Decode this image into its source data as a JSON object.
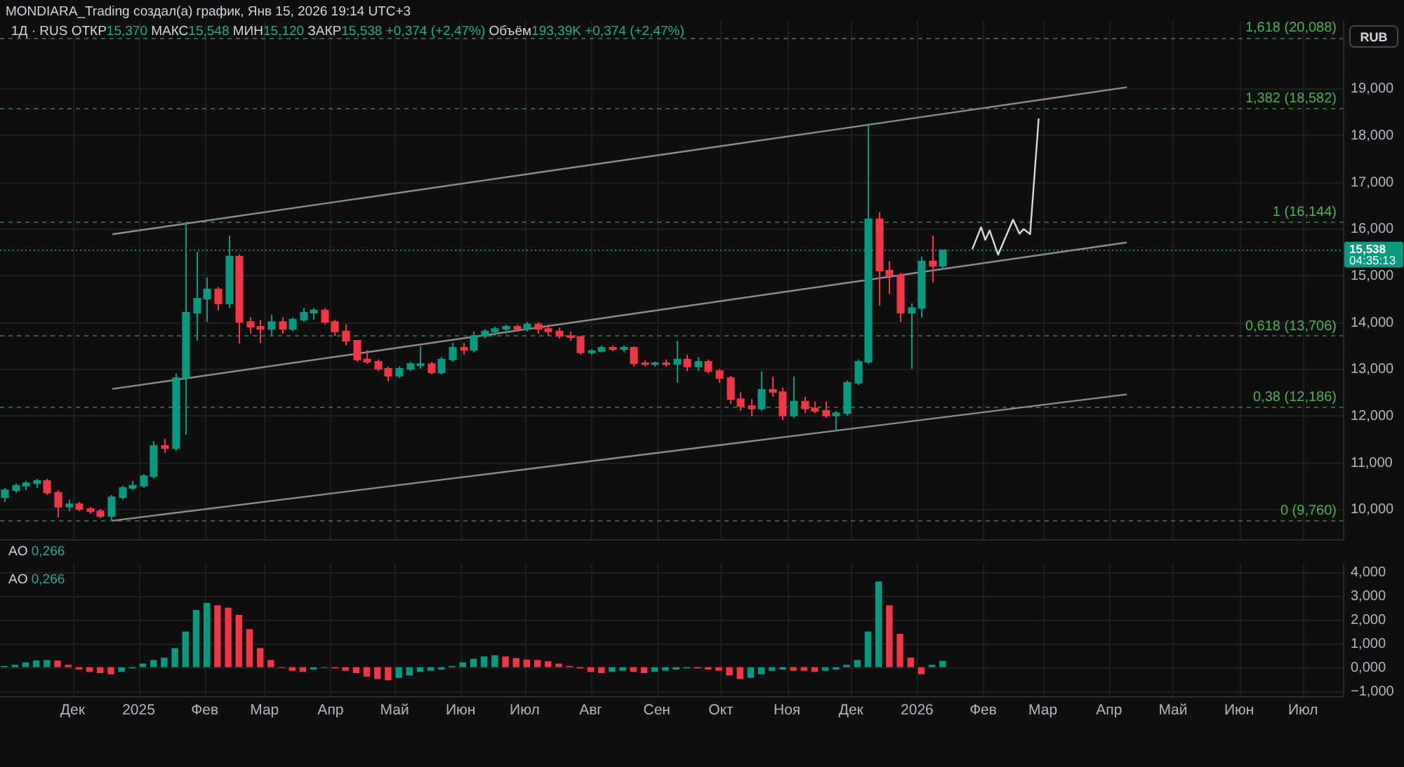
{
  "chart_data": [
    {
      "type": "candlestick",
      "title": "MONDIARA_Trading создал(а) график, Янв 15, 2026 19:14 UTC+3",
      "subtitle": "1Д · RUS ОТКР15,370 МАКС15,548 МИН15,120 ЗАКР15,538 +0,374 (+2,47%) Объём193,39K +0,374 (+2,47%)",
      "ylabel": "RUB",
      "x": [
        "2024-10-30",
        "2024-11-04",
        "2024-11-09",
        "2024-11-14",
        "2024-11-19",
        "2024-11-24",
        "2024-11-29",
        "2024-12-04",
        "2024-12-09",
        "2024-12-14",
        "2024-12-19",
        "2024-12-24",
        "2024-12-29",
        "2025-01-03",
        "2025-01-08",
        "2025-01-13",
        "2025-01-18",
        "2025-01-23",
        "2025-01-28",
        "2025-02-02",
        "2025-02-07",
        "2025-02-12",
        "2025-02-17",
        "2025-02-22",
        "2025-02-27",
        "2025-03-04",
        "2025-03-09",
        "2025-03-14",
        "2025-03-19",
        "2025-03-24",
        "2025-03-29",
        "2025-04-03",
        "2025-04-08",
        "2025-04-13",
        "2025-04-18",
        "2025-04-23",
        "2025-04-28",
        "2025-05-03",
        "2025-05-08",
        "2025-05-13",
        "2025-05-18",
        "2025-05-23",
        "2025-05-28",
        "2025-06-02",
        "2025-06-07",
        "2025-06-12",
        "2025-06-17",
        "2025-06-22",
        "2025-06-27",
        "2025-07-02",
        "2025-07-07",
        "2025-07-12",
        "2025-07-17",
        "2025-07-22",
        "2025-07-27",
        "2025-08-01",
        "2025-08-06",
        "2025-08-11",
        "2025-08-16",
        "2025-08-21",
        "2025-08-26",
        "2025-08-31",
        "2025-09-05",
        "2025-09-10",
        "2025-09-15",
        "2025-09-20",
        "2025-09-25",
        "2025-09-30",
        "2025-10-05",
        "2025-10-10",
        "2025-10-15",
        "2025-10-20",
        "2025-10-25",
        "2025-10-30",
        "2025-11-04",
        "2025-11-09",
        "2025-11-14",
        "2025-11-19",
        "2025-11-24",
        "2025-11-29",
        "2025-12-04",
        "2025-12-09",
        "2025-12-14",
        "2025-12-19",
        "2025-12-24",
        "2025-12-29",
        "2026-01-03",
        "2026-01-08",
        "2026-01-13"
      ],
      "ohlc": [
        [
          10.25,
          10.45,
          10.15,
          10.4
        ],
        [
          10.4,
          10.55,
          10.35,
          10.5
        ],
        [
          10.5,
          10.6,
          10.4,
          10.55
        ],
        [
          10.55,
          10.65,
          10.45,
          10.6
        ],
        [
          10.6,
          10.65,
          10.3,
          10.35
        ],
        [
          10.35,
          10.4,
          9.82,
          10.05
        ],
        [
          10.05,
          10.2,
          9.95,
          10.1
        ],
        [
          10.1,
          10.15,
          9.95,
          10.0
        ],
        [
          10.0,
          10.05,
          9.9,
          9.95
        ],
        [
          9.95,
          10.0,
          9.8,
          9.85
        ],
        [
          9.85,
          10.3,
          9.76,
          10.25
        ],
        [
          10.25,
          10.5,
          10.2,
          10.45
        ],
        [
          10.45,
          10.6,
          10.4,
          10.5
        ],
        [
          10.5,
          10.75,
          10.45,
          10.7
        ],
        [
          10.7,
          11.45,
          10.65,
          11.35
        ],
        [
          11.35,
          11.5,
          11.2,
          11.3
        ],
        [
          11.3,
          12.9,
          11.25,
          12.8
        ],
        [
          12.8,
          16.14,
          11.59,
          14.2
        ],
        [
          14.2,
          15.5,
          13.6,
          14.5
        ],
        [
          14.5,
          14.95,
          14.0,
          14.7
        ],
        [
          14.7,
          14.75,
          14.25,
          14.4
        ],
        [
          14.4,
          15.85,
          14.3,
          15.4
        ],
        [
          15.4,
          15.45,
          13.54,
          14.0
        ],
        [
          14.0,
          14.1,
          13.75,
          13.9
        ],
        [
          13.9,
          14.05,
          13.55,
          13.85
        ],
        [
          13.85,
          14.15,
          13.7,
          14.0
        ],
        [
          14.0,
          14.1,
          13.75,
          13.85
        ],
        [
          13.85,
          14.1,
          13.8,
          14.05
        ],
        [
          14.05,
          14.3,
          14.0,
          14.2
        ],
        [
          14.2,
          14.3,
          14.05,
          14.25
        ],
        [
          14.25,
          14.3,
          13.95,
          14.0
        ],
        [
          14.0,
          14.05,
          13.7,
          13.8
        ],
        [
          13.8,
          13.95,
          13.5,
          13.6
        ],
        [
          13.6,
          13.6,
          13.15,
          13.2
        ],
        [
          13.2,
          13.4,
          13.1,
          13.15
        ],
        [
          13.15,
          13.2,
          12.95,
          13.0
        ],
        [
          13.0,
          13.05,
          12.73,
          12.85
        ],
        [
          12.85,
          13.05,
          12.8,
          13.0
        ],
        [
          13.0,
          13.15,
          12.95,
          13.1
        ],
        [
          13.1,
          13.48,
          13.0,
          13.1
        ],
        [
          13.1,
          13.15,
          12.88,
          12.92
        ],
        [
          12.92,
          13.25,
          12.88,
          13.2
        ],
        [
          13.2,
          13.55,
          13.15,
          13.45
        ],
        [
          13.45,
          13.55,
          13.3,
          13.4
        ],
        [
          13.4,
          13.8,
          13.35,
          13.7
        ],
        [
          13.7,
          13.85,
          13.65,
          13.8
        ],
        [
          13.8,
          13.9,
          13.7,
          13.85
        ],
        [
          13.85,
          13.95,
          13.75,
          13.9
        ],
        [
          13.9,
          13.95,
          13.8,
          13.85
        ],
        [
          13.85,
          14.0,
          13.8,
          13.95
        ],
        [
          13.95,
          14.0,
          13.75,
          13.85
        ],
        [
          13.85,
          13.95,
          13.7,
          13.8
        ],
        [
          13.8,
          13.88,
          13.65,
          13.7
        ],
        [
          13.7,
          13.8,
          13.6,
          13.68
        ],
        [
          13.68,
          13.7,
          13.3,
          13.35
        ],
        [
          13.35,
          13.42,
          13.3,
          13.38
        ],
        [
          13.38,
          13.5,
          13.35,
          13.45
        ],
        [
          13.45,
          13.5,
          13.38,
          13.42
        ],
        [
          13.42,
          13.5,
          13.35,
          13.45
        ],
        [
          13.45,
          13.48,
          13.05,
          13.12
        ],
        [
          13.12,
          13.18,
          13.05,
          13.1
        ],
        [
          13.1,
          13.15,
          13.05,
          13.12
        ],
        [
          13.12,
          13.2,
          13.05,
          13.1
        ],
        [
          13.1,
          13.6,
          12.7,
          13.2
        ],
        [
          13.2,
          13.3,
          12.95,
          13.05
        ],
        [
          13.05,
          13.25,
          12.95,
          13.15
        ],
        [
          13.15,
          13.2,
          12.9,
          12.95
        ],
        [
          12.95,
          13.0,
          12.7,
          12.8
        ],
        [
          12.8,
          12.85,
          12.25,
          12.35
        ],
        [
          12.35,
          12.5,
          12.1,
          12.2
        ],
        [
          12.2,
          12.35,
          11.98,
          12.15
        ],
        [
          12.15,
          12.94,
          12.1,
          12.55
        ],
        [
          12.55,
          12.83,
          12.4,
          12.5
        ],
        [
          12.5,
          12.6,
          11.9,
          12.0
        ],
        [
          12.0,
          12.83,
          11.95,
          12.3
        ],
        [
          12.3,
          12.4,
          12.05,
          12.15
        ],
        [
          12.15,
          12.3,
          12.05,
          12.1
        ],
        [
          12.1,
          12.3,
          11.95,
          12.0
        ],
        [
          12.0,
          12.1,
          11.68,
          12.05
        ],
        [
          12.05,
          12.75,
          12.0,
          12.7
        ],
        [
          12.7,
          13.2,
          12.65,
          13.15
        ],
        [
          13.15,
          18.25,
          13.1,
          16.2
        ],
        [
          16.2,
          16.35,
          14.35,
          15.1
        ],
        [
          15.1,
          15.3,
          14.6,
          15.0
        ],
        [
          15.0,
          15.05,
          14.0,
          14.2
        ],
        [
          14.2,
          14.4,
          13.0,
          14.3
        ],
        [
          14.3,
          15.4,
          14.1,
          15.3
        ],
        [
          15.3,
          15.85,
          14.85,
          15.2
        ],
        [
          15.2,
          15.548,
          15.12,
          15.538
        ]
      ],
      "colors": [
        "#089981",
        "#089981",
        "#089981",
        "#089981",
        "#f23645",
        "#f23645",
        "#089981",
        "#f23645",
        "#f23645",
        "#f23645",
        "#089981",
        "#089981",
        "#089981",
        "#089981",
        "#089981",
        "#f23645",
        "#089981",
        "#089981",
        "#089981",
        "#089981",
        "#f23645",
        "#089981",
        "#f23645",
        "#f23645",
        "#f23645",
        "#089981",
        "#f23645",
        "#089981",
        "#089981",
        "#089981",
        "#f23645",
        "#f23645",
        "#f23645",
        "#f23645",
        "#f23645",
        "#f23645",
        "#f23645",
        "#089981",
        "#089981",
        "#089981",
        "#f23645",
        "#089981",
        "#089981",
        "#f23645",
        "#089981",
        "#089981",
        "#089981",
        "#089981",
        "#f23645",
        "#089981",
        "#f23645",
        "#f23645",
        "#f23645",
        "#f23645",
        "#f23645",
        "#089981",
        "#089981",
        "#f23645",
        "#089981",
        "#f23645",
        "#f23645",
        "#089981",
        "#f23645",
        "#089981",
        "#f23645",
        "#089981",
        "#f23645",
        "#f23645",
        "#f23645",
        "#f23645",
        "#f23645",
        "#089981",
        "#f23645",
        "#f23645",
        "#089981",
        "#f23645",
        "#f23645",
        "#f23645",
        "#089981",
        "#089981",
        "#089981",
        "#089981",
        "#f23645",
        "#f23645",
        "#f23645",
        "#089981",
        "#089981",
        "#f23645",
        "#089981"
      ],
      "series": [
        {
          "type": "line",
          "x": [
            "2024-12-20",
            "2026-04-09"
          ],
          "values": [
            15.88,
            19.02
          ],
          "color": "#8c8c8c"
        },
        {
          "type": "line",
          "x": [
            "2024-12-20",
            "2026-04-09"
          ],
          "values": [
            12.57,
            15.7
          ],
          "color": "#8c8c8c"
        },
        {
          "type": "line",
          "x": [
            "2024-12-20",
            "2026-04-09"
          ],
          "values": [
            9.75,
            12.45
          ],
          "color": "#8c8c8c"
        },
        {
          "type": "line",
          "x": [
            "2026-01-27",
            "2026-01-31",
            "2026-02-02",
            "2026-02-04",
            "2026-02-08",
            "2026-02-15",
            "2026-02-18",
            "2026-02-20",
            "2026-02-23",
            "2026-02-27"
          ],
          "values": [
            15.57,
            16.03,
            15.76,
            15.96,
            15.44,
            16.19,
            15.89,
            15.99,
            15.88,
            18.34
          ],
          "color": "#d9d9d9"
        }
      ],
      "ref_lines": [
        {
          "axis": "y",
          "value": 9.76,
          "label": "0 (9,760)",
          "color": "#4caf50",
          "line_style": "dashed"
        },
        {
          "axis": "y",
          "value": 12.186,
          "label": "0,38 (12,186)",
          "color": "#4caf50",
          "line_style": "dashed"
        },
        {
          "axis": "y",
          "value": 13.706,
          "label": "0,618 (13,706)",
          "color": "#4caf50",
          "line_style": "dashed"
        },
        {
          "axis": "y",
          "value": 16.144,
          "label": "1 (16,144)",
          "color": "#4caf50",
          "line_style": "dashed"
        },
        {
          "axis": "y",
          "value": 18.582,
          "label": "1,382 (18,582)",
          "color": "#4caf50",
          "line_style": "dashed"
        },
        {
          "axis": "y",
          "value": 20.088,
          "label": "1,618 (20,088)",
          "color": "#4caf50",
          "line_style": "dashed"
        },
        {
          "axis": "y",
          "value": 15.538,
          "label": "15,538\n04:35:13",
          "color": "#089981",
          "line_style": "dotted"
        }
      ],
      "xlim": [
        "2024-10-28",
        "2026-07-20"
      ],
      "xticks": [
        "2024-12-01",
        "2025-01-01",
        "2025-02-01",
        "2025-03-01",
        "2025-04-01",
        "2025-05-01",
        "2025-06-01",
        "2025-07-01",
        "2025-08-01",
        "2025-09-01",
        "2025-10-01",
        "2025-11-01",
        "2025-12-01",
        "2026-01-01",
        "2026-02-01",
        "2026-03-01",
        "2026-04-01",
        "2026-05-01",
        "2026-06-01",
        "2026-07-01"
      ],
      "ylim": [
        9.34,
        20.44
      ],
      "yticks": [
        {
          "value": 10,
          "label": "10,000"
        },
        {
          "value": 11,
          "label": "11,000"
        },
        {
          "value": 12,
          "label": "12,000"
        },
        {
          "value": 13,
          "label": "13,000"
        },
        {
          "value": 14,
          "label": "14,000"
        },
        {
          "value": 15,
          "label": "15,000"
        },
        {
          "value": 16,
          "label": "16,000"
        },
        {
          "value": 17,
          "label": "17,000"
        },
        {
          "value": 18,
          "label": "18,000"
        },
        {
          "value": 19,
          "label": "19,000"
        }
      ],
      "grid": true,
      "tick_labels": "y"
    },
    {
      "type": "bar",
      "annotations": [
        "AO 0,266",
        "AO 0,266"
      ],
      "x": [
        "2024-10-30",
        "2024-11-04",
        "2024-11-09",
        "2024-11-14",
        "2024-11-19",
        "2024-11-24",
        "2024-11-29",
        "2024-12-04",
        "2024-12-09",
        "2024-12-14",
        "2024-12-19",
        "2024-12-24",
        "2024-12-29",
        "2025-01-03",
        "2025-01-08",
        "2025-01-13",
        "2025-01-18",
        "2025-01-23",
        "2025-01-28",
        "2025-02-02",
        "2025-02-07",
        "2025-02-12",
        "2025-02-17",
        "2025-02-22",
        "2025-02-27",
        "2025-03-04",
        "2025-03-09",
        "2025-03-14",
        "2025-03-19",
        "2025-03-24",
        "2025-03-29",
        "2025-04-03",
        "2025-04-08",
        "2025-04-13",
        "2025-04-18",
        "2025-04-23",
        "2025-04-28",
        "2025-05-03",
        "2025-05-08",
        "2025-05-13",
        "2025-05-18",
        "2025-05-23",
        "2025-05-28",
        "2025-06-02",
        "2025-06-07",
        "2025-06-12",
        "2025-06-17",
        "2025-06-22",
        "2025-06-27",
        "2025-07-02",
        "2025-07-07",
        "2025-07-12",
        "2025-07-17",
        "2025-07-22",
        "2025-07-27",
        "2025-08-01",
        "2025-08-06",
        "2025-08-11",
        "2025-08-16",
        "2025-08-21",
        "2025-08-26",
        "2025-08-31",
        "2025-09-05",
        "2025-09-10",
        "2025-09-15",
        "2025-09-20",
        "2025-09-25",
        "2025-09-30",
        "2025-10-05",
        "2025-10-10",
        "2025-10-15",
        "2025-10-20",
        "2025-10-25",
        "2025-10-30",
        "2025-11-04",
        "2025-11-09",
        "2025-11-14",
        "2025-11-19",
        "2025-11-24",
        "2025-11-29",
        "2025-12-04",
        "2025-12-09",
        "2025-12-14",
        "2025-12-19",
        "2025-12-24",
        "2025-12-29",
        "2026-01-03",
        "2026-01-08",
        "2026-01-13"
      ],
      "values": [
        0.05,
        0.1,
        0.2,
        0.28,
        0.3,
        0.28,
        0.1,
        -0.1,
        -0.2,
        -0.25,
        -0.3,
        -0.2,
        -0.05,
        0.15,
        0.3,
        0.4,
        0.8,
        1.5,
        2.4,
        2.7,
        2.6,
        2.5,
        2.2,
        1.6,
        0.8,
        0.3,
        0.0,
        -0.15,
        -0.2,
        -0.1,
        0.0,
        -0.05,
        -0.15,
        -0.25,
        -0.4,
        -0.5,
        -0.55,
        -0.45,
        -0.35,
        -0.2,
        -0.15,
        -0.1,
        0.05,
        0.2,
        0.35,
        0.45,
        0.5,
        0.45,
        0.38,
        0.32,
        0.3,
        0.25,
        0.15,
        0.05,
        -0.05,
        -0.2,
        -0.25,
        -0.2,
        -0.15,
        -0.2,
        -0.25,
        -0.2,
        -0.15,
        -0.1,
        -0.05,
        -0.05,
        -0.1,
        -0.15,
        -0.35,
        -0.5,
        -0.45,
        -0.3,
        -0.15,
        -0.1,
        -0.15,
        -0.15,
        -0.2,
        -0.15,
        -0.1,
        0.1,
        0.3,
        1.5,
        3.6,
        2.6,
        1.4,
        0.4,
        -0.3,
        0.1,
        0.266
      ],
      "colors": [
        "#089981",
        "#089981",
        "#089981",
        "#089981",
        "#089981",
        "#f23645",
        "#f23645",
        "#f23645",
        "#f23645",
        "#f23645",
        "#f23645",
        "#089981",
        "#089981",
        "#089981",
        "#089981",
        "#089981",
        "#089981",
        "#089981",
        "#089981",
        "#089981",
        "#f23645",
        "#f23645",
        "#f23645",
        "#f23645",
        "#f23645",
        "#f23645",
        "#f23645",
        "#f23645",
        "#f23645",
        "#089981",
        "#089981",
        "#f23645",
        "#f23645",
        "#f23645",
        "#f23645",
        "#f23645",
        "#f23645",
        "#089981",
        "#089981",
        "#089981",
        "#089981",
        "#089981",
        "#089981",
        "#089981",
        "#089981",
        "#089981",
        "#089981",
        "#f23645",
        "#f23645",
        "#f23645",
        "#f23645",
        "#f23645",
        "#f23645",
        "#f23645",
        "#f23645",
        "#f23645",
        "#f23645",
        "#089981",
        "#089981",
        "#f23645",
        "#f23645",
        "#089981",
        "#089981",
        "#089981",
        "#089981",
        "#f23645",
        "#f23645",
        "#f23645",
        "#f23645",
        "#f23645",
        "#089981",
        "#089981",
        "#089981",
        "#089981",
        "#f23645",
        "#f23645",
        "#f23645",
        "#089981",
        "#089981",
        "#089981",
        "#089981",
        "#089981",
        "#089981",
        "#f23645",
        "#f23645",
        "#f23645",
        "#f23645",
        "#089981",
        "#089981"
      ],
      "xlim": [
        "2024-10-28",
        "2026-07-20"
      ],
      "xticks": [
        {
          "value": "2024-12-01",
          "label": "Дек"
        },
        {
          "value": "2025-01-01",
          "label": "2025"
        },
        {
          "value": "2025-02-01",
          "label": "Фев"
        },
        {
          "value": "2025-03-01",
          "label": "Мар"
        },
        {
          "value": "2025-04-01",
          "label": "Апр"
        },
        {
          "value": "2025-05-01",
          "label": "Май"
        },
        {
          "value": "2025-06-01",
          "label": "Июн"
        },
        {
          "value": "2025-07-01",
          "label": "Июл"
        },
        {
          "value": "2025-08-01",
          "label": "Авг"
        },
        {
          "value": "2025-09-01",
          "label": "Сен"
        },
        {
          "value": "2025-10-01",
          "label": "Окт"
        },
        {
          "value": "2025-11-01",
          "label": "Ноя"
        },
        {
          "value": "2025-12-01",
          "label": "Дек"
        },
        {
          "value": "2026-01-01",
          "label": "2026"
        },
        {
          "value": "2026-02-01",
          "label": "Фев"
        },
        {
          "value": "2026-03-01",
          "label": "Мар"
        },
        {
          "value": "2026-04-01",
          "label": "Апр"
        },
        {
          "value": "2026-05-01",
          "label": "Май"
        },
        {
          "value": "2026-06-01",
          "label": "Июн"
        },
        {
          "value": "2026-07-01",
          "label": "Июл"
        }
      ],
      "ylim": [
        -1.25,
        4.35
      ],
      "yticks": [
        {
          "value": -1,
          "label": "−1,000"
        },
        {
          "value": 0,
          "label": "0,000"
        },
        {
          "value": 1,
          "label": "1,000"
        },
        {
          "value": 2,
          "label": "2,000"
        },
        {
          "value": 3,
          "label": "3,000"
        },
        {
          "value": 4,
          "label": "4,000"
        }
      ],
      "grid": true
    }
  ]
}
